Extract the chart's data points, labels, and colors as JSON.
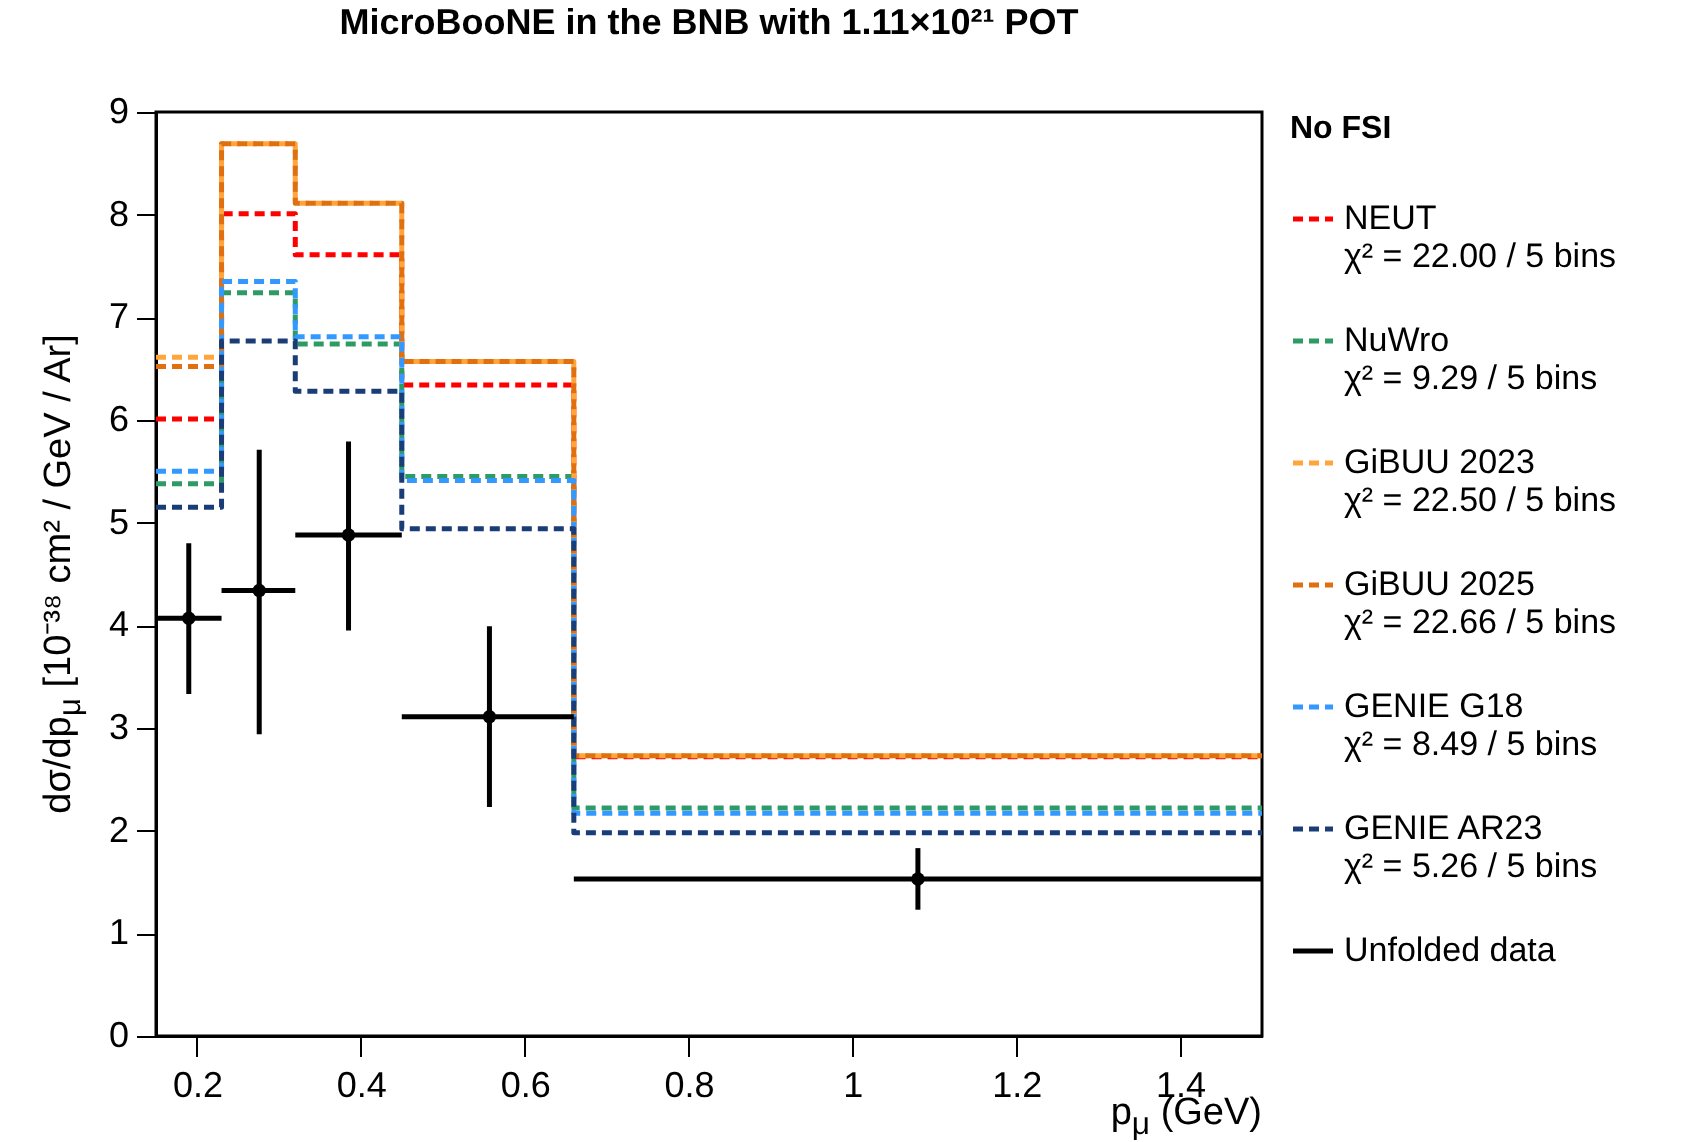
{
  "chart_data": {
    "type": "step",
    "title": "MicroBooNE in the BNB with 1.11×10²¹ POT",
    "xlabel": "p$_{μ}$ (GeV)",
    "ylabel": "dσ/dp$_{μ}$ [10⁻³⁸ cm² / GeV / Ar]",
    "legend_title": "No FSI",
    "legend": "right",
    "grid": false,
    "xlim": [
      0.15,
      1.5
    ],
    "xticks": [
      0.2,
      0.4,
      0.6,
      0.8,
      1,
      1.2,
      1.4
    ],
    "ylim": [
      0,
      9
    ],
    "yticks": [
      0,
      1,
      2,
      3,
      4,
      5,
      6,
      7,
      8,
      9
    ],
    "series": [
      {
        "name": "NEUT\nχ² = 22.00 / 5 bins",
        "type": "step",
        "line_style": "dashed",
        "color": "#ff0000",
        "x": [
          0.15,
          0.23,
          0.32,
          0.45,
          0.66,
          1.5
        ],
        "values": [
          6.01,
          8.01,
          7.61,
          6.34,
          2.72,
          2.72
        ]
      },
      {
        "name": "NuWro\nχ² = 9.29 / 5 bins",
        "type": "step",
        "line_style": "dashed",
        "color": "#2e9a66",
        "x": [
          0.15,
          0.23,
          0.32,
          0.45,
          0.66,
          1.5
        ],
        "values": [
          5.38,
          7.24,
          6.74,
          5.45,
          2.22,
          2.22
        ]
      },
      {
        "name": "GiBUU 2023\nχ² = 22.50 / 5 bins",
        "type": "step",
        "line_style": "dashed",
        "color": "#ffa53c",
        "x": [
          0.15,
          0.23,
          0.32,
          0.45,
          0.66,
          1.5
        ],
        "values": [
          6.61,
          8.69,
          8.11,
          6.57,
          2.73,
          2.73
        ]
      },
      {
        "name": "GiBUU 2025\nχ² = 22.66 / 5 bins",
        "type": "step",
        "line_style": "dashed",
        "color": "#e0700f",
        "x": [
          0.15,
          0.23,
          0.32,
          0.45,
          0.66,
          1.5
        ],
        "values": [
          6.52,
          8.69,
          8.11,
          6.57,
          2.73,
          2.73
        ]
      },
      {
        "name": "GENIE G18\nχ² = 8.49 / 5 bins",
        "type": "step",
        "line_style": "dashed",
        "color": "#3399ff",
        "x": [
          0.15,
          0.23,
          0.32,
          0.45,
          0.66,
          1.5
        ],
        "values": [
          5.5,
          7.35,
          6.81,
          5.41,
          2.17,
          2.17
        ]
      },
      {
        "name": "GENIE AR23\nχ² = 5.26 / 5 bins",
        "type": "step",
        "line_style": "dashed",
        "color": "#1a3d78",
        "x": [
          0.15,
          0.23,
          0.32,
          0.45,
          0.66,
          1.5
        ],
        "values": [
          5.15,
          6.77,
          6.28,
          4.94,
          1.98,
          1.98
        ]
      },
      {
        "name": "Unfolded data",
        "type": "scatter",
        "marker": "circle",
        "color": "#000000",
        "x": [
          0.19,
          0.276,
          0.385,
          0.557,
          1.08
        ],
        "values": [
          4.07,
          4.34,
          4.88,
          3.11,
          1.53
        ],
        "errors": [
          [
            3.33,
            4.8
          ],
          [
            2.94,
            5.71
          ],
          [
            3.95,
            5.79
          ],
          [
            2.23,
            3.99
          ],
          [
            1.23,
            1.83
          ]
        ],
        "xerrors": [
          [
            0.15,
            0.23
          ],
          [
            0.23,
            0.32
          ],
          [
            0.32,
            0.45
          ],
          [
            0.45,
            0.66
          ],
          [
            0.66,
            1.5
          ]
        ]
      }
    ]
  }
}
